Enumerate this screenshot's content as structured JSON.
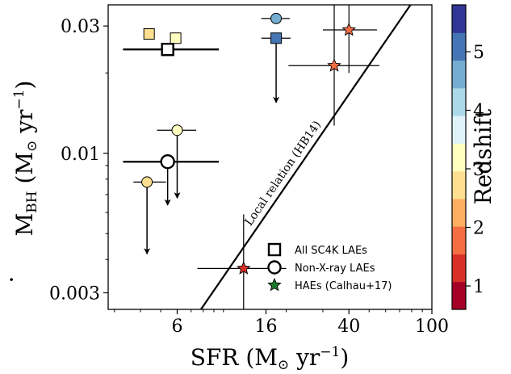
{
  "chart_data": {
    "type": "scatter",
    "xscale": "log",
    "yscale": "log",
    "xlim": [
      2.8,
      100
    ],
    "ylim": [
      0.0026,
      0.036
    ],
    "xticks": [
      6,
      16,
      40,
      100
    ],
    "yticks": [
      0.003,
      0.01,
      0.03
    ],
    "xlabel": {
      "main": "SFR",
      "unit_open": " (M",
      "unit_sub": "⊙",
      "unit_rest": " yr",
      "exp": "−1",
      "close": ")"
    },
    "ylabel": {
      "dot": "·",
      "main": "M",
      "sub": "BH",
      "unit_open": " (M",
      "unit_sub": "⊙",
      "unit_rest": " yr",
      "exp": "−1",
      "close": ")"
    },
    "x_tick_labels": [
      "6",
      "16",
      "40",
      "100"
    ],
    "y_tick_labels": [
      "0.003",
      "0.01",
      "0.03"
    ],
    "colorbar": {
      "label": "Redshift",
      "range": [
        0.6,
        5.8
      ],
      "ticks": [
        1,
        2,
        3,
        4,
        5
      ],
      "tick_labels": [
        "1",
        "2",
        "3",
        "4",
        "5"
      ],
      "colors": [
        "#a50026",
        "#d73027",
        "#f46d43",
        "#fdae61",
        "#fee090",
        "#ffffbf",
        "#e0f3f8",
        "#abd9e9",
        "#74add1",
        "#4575b4",
        "#313695"
      ]
    },
    "relation": {
      "label": "Local relation (HB14)",
      "points": [
        [
          7.8,
          0.0026
        ],
        [
          79,
          0.036
        ]
      ]
    },
    "legend": {
      "position": "lower-right",
      "entries": [
        {
          "marker": "square",
          "label": "All SC4K LAEs"
        },
        {
          "marker": "circle",
          "label": "Non-X-ray LAEs"
        },
        {
          "marker": "star",
          "label": "HAEs (Calhau+17)"
        }
      ]
    },
    "series": [
      {
        "marker": "square",
        "points": [
          {
            "x": 4.4,
            "y": 0.028,
            "z": 2.5
          },
          {
            "x": 5.9,
            "y": 0.027,
            "z": 3.1
          },
          {
            "x": 17.9,
            "y": 0.027,
            "z": 5.2,
            "xerr": [
              15.2,
              21.0
            ],
            "upper_limit": true,
            "arrow_to": 0.0155
          },
          {
            "x": 5.4,
            "y": 0.0245,
            "z": 0,
            "outline": true,
            "xerr": [
              3.3,
              9.5
            ]
          }
        ]
      },
      {
        "marker": "circle",
        "points": [
          {
            "x": 17.9,
            "y": 0.032,
            "z": 4.8,
            "xerr": [
              15.2,
              20.8
            ]
          },
          {
            "x": 6.0,
            "y": 0.0122,
            "z": 3.0,
            "xerr": [
              4.8,
              7.4
            ],
            "upper_limit": true,
            "arrow_to": 0.0068
          },
          {
            "x": 5.4,
            "y": 0.0093,
            "z": 0,
            "outline": true,
            "xerr": [
              3.3,
              9.5
            ],
            "upper_limit": true,
            "arrow_to": 0.0064
          },
          {
            "x": 4.3,
            "y": 0.0078,
            "z": 2.5,
            "xerr": [
              3.7,
              5.3
            ],
            "upper_limit": true,
            "arrow_to": 0.0042
          }
        ]
      },
      {
        "marker": "star",
        "points": [
          {
            "x": 40.0,
            "y": 0.029,
            "z": 2.0,
            "xerr": [
              30.0,
              54.5
            ],
            "yerr": [
              0.02,
              0.036
            ]
          },
          {
            "x": 34.0,
            "y": 0.0213,
            "z": 1.55,
            "xerr": [
              20.5,
              56.0
            ],
            "yerr": [
              0.0127,
              0.036
            ]
          },
          {
            "x": 12.5,
            "y": 0.0037,
            "z": 1.2,
            "xerr": [
              7.5,
              20.0
            ],
            "yerr": [
              0.0026,
              0.0059
            ]
          }
        ]
      }
    ]
  }
}
